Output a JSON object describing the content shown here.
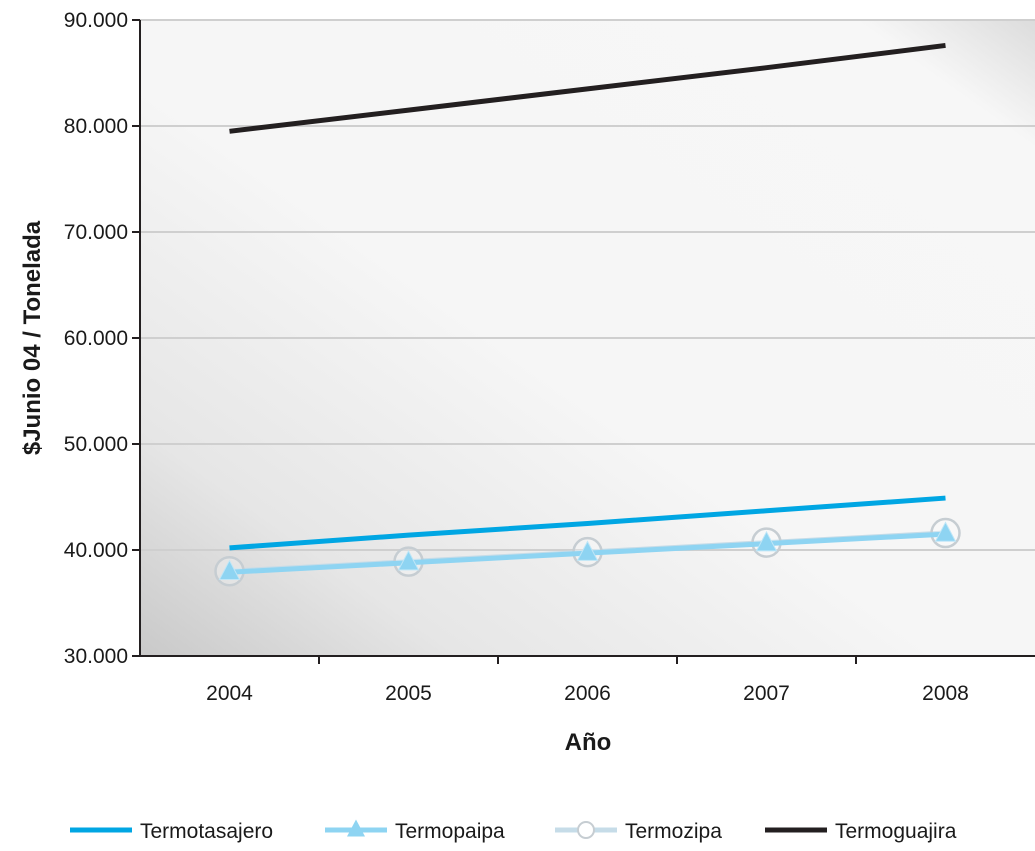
{
  "chart_data": {
    "type": "line",
    "title": "",
    "xlabel": "Año",
    "ylabel": "$Junio 04 / Tonelada",
    "categories": [
      "2004",
      "2005",
      "2006",
      "2007",
      "2008"
    ],
    "ylim": [
      30000,
      90000
    ],
    "y_ticks": [
      30000,
      40000,
      50000,
      60000,
      70000,
      80000,
      90000
    ],
    "y_tick_labels": [
      "30.000",
      "40.000",
      "50.000",
      "60.000",
      "70.000",
      "80.000",
      "90.000"
    ],
    "grid": "horizontal",
    "legend_position": "bottom",
    "series": [
      {
        "name": "Termotasajero",
        "values": [
          40200,
          41400,
          42500,
          43700,
          44900
        ],
        "color": "#00a6e3",
        "marker": "none"
      },
      {
        "name": "Termopaipa",
        "values": [
          37900,
          38800,
          39700,
          40600,
          41500
        ],
        "color": "#8ed4f2",
        "marker": "triangle"
      },
      {
        "name": "Termozipa",
        "values": [
          38000,
          38900,
          39800,
          40700,
          41600
        ],
        "color": "#c6dce8",
        "marker": "circle"
      },
      {
        "name": "Termoguajira",
        "values": [
          79500,
          81500,
          83500,
          85500,
          87600
        ],
        "color": "#231f20",
        "marker": "none"
      }
    ]
  }
}
